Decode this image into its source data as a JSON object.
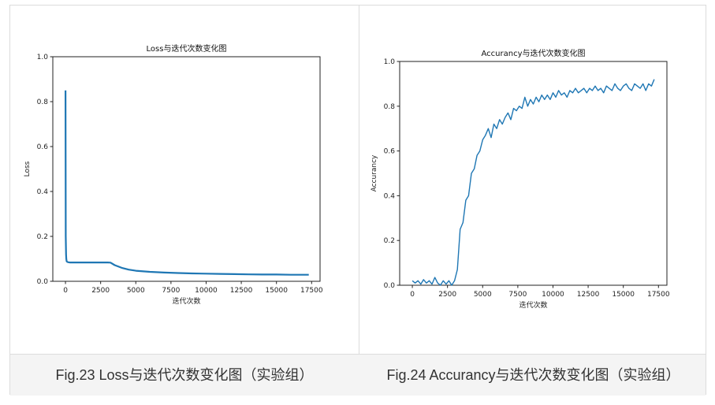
{
  "captions": {
    "left": "Fig.23 Loss与迭代次数变化图（实验组）",
    "right": "Fig.24 Accurancy与迭代次数变化图（实验组）"
  },
  "colors": {
    "line": "#1f77b4",
    "border": "#dcdcdc",
    "caption_bg": "#f4f4f4"
  },
  "chart_data": [
    {
      "type": "line",
      "title": "Loss与迭代次数变化图",
      "xlabel": "迭代次数",
      "ylabel": "Loss",
      "xlim": [
        -900,
        18100
      ],
      "ylim": [
        0,
        1.0
      ],
      "xticks": [
        0,
        2500,
        5000,
        7500,
        10000,
        12500,
        15000,
        17500
      ],
      "yticks": [
        0.0,
        0.2,
        0.4,
        0.6,
        0.8,
        1.0
      ],
      "ytick_labels": [
        "0.0",
        "0.2",
        "0.4",
        "0.6",
        "0.8",
        "1.0"
      ],
      "series": [
        {
          "x": [
            0,
            20,
            40,
            60,
            80,
            100,
            150,
            200,
            300,
            500,
            1000,
            1500,
            2000,
            2500,
            3000,
            3200,
            3500,
            4000,
            4500,
            5000,
            6000,
            7000,
            8000,
            9000,
            10000,
            11000,
            12000,
            13000,
            14000,
            15000,
            16000,
            17000,
            17300
          ],
          "y": [
            0.85,
            0.2,
            0.12,
            0.1,
            0.09,
            0.088,
            0.086,
            0.085,
            0.084,
            0.084,
            0.084,
            0.084,
            0.084,
            0.084,
            0.084,
            0.083,
            0.072,
            0.06,
            0.052,
            0.047,
            0.042,
            0.039,
            0.037,
            0.035,
            0.034,
            0.033,
            0.032,
            0.031,
            0.03,
            0.03,
            0.029,
            0.029,
            0.029
          ]
        }
      ]
    },
    {
      "type": "line",
      "title": "Accurancy与迭代次数变化图",
      "xlabel": "迭代次数",
      "ylabel": "Accurancy",
      "xlim": [
        -900,
        18100
      ],
      "ylim": [
        0,
        1.0
      ],
      "xticks": [
        0,
        2500,
        5000,
        7500,
        10000,
        12500,
        15000,
        17500
      ],
      "yticks": [
        0.0,
        0.2,
        0.4,
        0.6,
        0.8,
        1.0
      ],
      "ytick_labels": [
        "0.0",
        "0.2",
        "0.4",
        "0.6",
        "0.8",
        "1.0"
      ],
      "series": [
        {
          "x": [
            0,
            200,
            400,
            600,
            800,
            1000,
            1200,
            1400,
            1600,
            1800,
            2000,
            2200,
            2400,
            2600,
            2800,
            3000,
            3200,
            3400,
            3600,
            3800,
            4000,
            4200,
            4400,
            4600,
            4800,
            5000,
            5200,
            5400,
            5600,
            5800,
            6000,
            6200,
            6400,
            6600,
            6800,
            7000,
            7200,
            7400,
            7600,
            7800,
            8000,
            8200,
            8400,
            8600,
            8800,
            9000,
            9200,
            9400,
            9600,
            9800,
            10000,
            10200,
            10400,
            10600,
            10800,
            11000,
            11200,
            11400,
            11600,
            11800,
            12000,
            12200,
            12400,
            12600,
            12800,
            13000,
            13200,
            13400,
            13600,
            13800,
            14000,
            14200,
            14400,
            14600,
            14800,
            15000,
            15200,
            15400,
            15600,
            15800,
            16000,
            16200,
            16400,
            16600,
            16800,
            17000,
            17200
          ],
          "y": [
            0.02,
            0.01,
            0.02,
            0.005,
            0.025,
            0.01,
            0.02,
            0.005,
            0.035,
            0.01,
            0.0,
            0.02,
            0.005,
            0.02,
            0.0,
            0.02,
            0.07,
            0.25,
            0.28,
            0.38,
            0.4,
            0.5,
            0.52,
            0.58,
            0.6,
            0.65,
            0.67,
            0.7,
            0.66,
            0.72,
            0.7,
            0.74,
            0.72,
            0.75,
            0.77,
            0.74,
            0.79,
            0.78,
            0.8,
            0.79,
            0.84,
            0.8,
            0.83,
            0.81,
            0.84,
            0.82,
            0.85,
            0.83,
            0.85,
            0.83,
            0.86,
            0.84,
            0.87,
            0.85,
            0.86,
            0.84,
            0.87,
            0.86,
            0.88,
            0.86,
            0.87,
            0.88,
            0.86,
            0.88,
            0.87,
            0.89,
            0.87,
            0.88,
            0.86,
            0.89,
            0.88,
            0.87,
            0.9,
            0.88,
            0.87,
            0.89,
            0.9,
            0.88,
            0.87,
            0.9,
            0.89,
            0.88,
            0.9,
            0.87,
            0.9,
            0.89,
            0.92
          ]
        }
      ]
    }
  ]
}
